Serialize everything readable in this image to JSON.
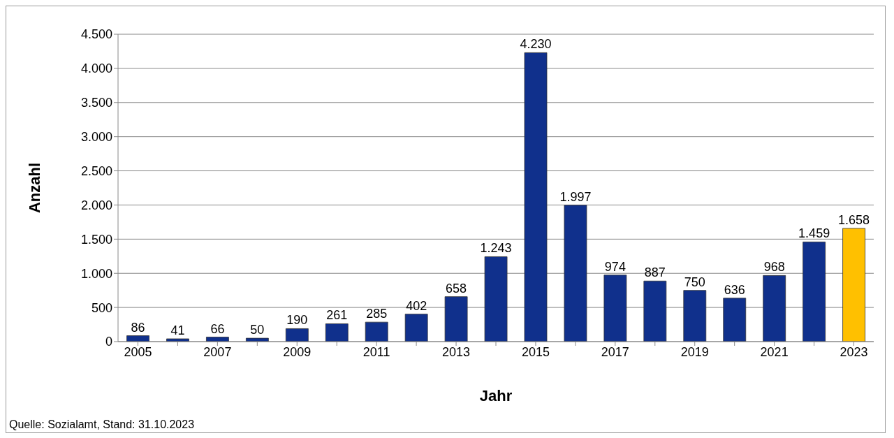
{
  "chart_data": {
    "type": "bar",
    "categories": [
      "2005",
      null,
      "2007",
      null,
      "2009",
      null,
      "2011",
      null,
      "2013",
      null,
      "2015",
      null,
      "2017",
      null,
      "2019",
      null,
      "2021",
      null,
      "2023"
    ],
    "values": [
      86,
      41,
      66,
      50,
      190,
      261,
      285,
      402,
      658,
      1243,
      4230,
      1997,
      974,
      887,
      750,
      636,
      968,
      1459,
      1658
    ],
    "colors": [
      "#10308c",
      "#10308c",
      "#10308c",
      "#10308c",
      "#10308c",
      "#10308c",
      "#10308c",
      "#10308c",
      "#10308c",
      "#10308c",
      "#10308c",
      "#10308c",
      "#10308c",
      "#10308c",
      "#10308c",
      "#10308c",
      "#10308c",
      "#10308c",
      "#ffc000"
    ],
    "value_labels": [
      "86",
      "41",
      "66",
      "50",
      "190",
      "261",
      "285",
      "402",
      "658",
      "1.243",
      "4.230",
      "1.997",
      "974",
      "887",
      "750",
      "636",
      "968",
      "1.459",
      "1.658"
    ],
    "xlabel": "Jahr",
    "ylabel": "Anzahl",
    "ylim": [
      0,
      4500
    ],
    "yticks": [
      0,
      500,
      {
        "value": 1000,
        "label": "1.000"
      },
      {
        "value": 1500,
        "label": "1.500"
      },
      {
        "value": 2000,
        "label": "2.000"
      },
      {
        "value": 2500,
        "label": "2.500"
      },
      {
        "value": 3000,
        "label": "3.000"
      },
      {
        "value": 3500,
        "label": "3.500"
      },
      {
        "value": 4000,
        "label": "4.000"
      },
      {
        "value": 4500,
        "label": "4.500"
      }
    ],
    "grid": "y",
    "legend": false,
    "annotations": [
      "Quelle: Sozialamt, Stand: 31.10.2023"
    ]
  }
}
